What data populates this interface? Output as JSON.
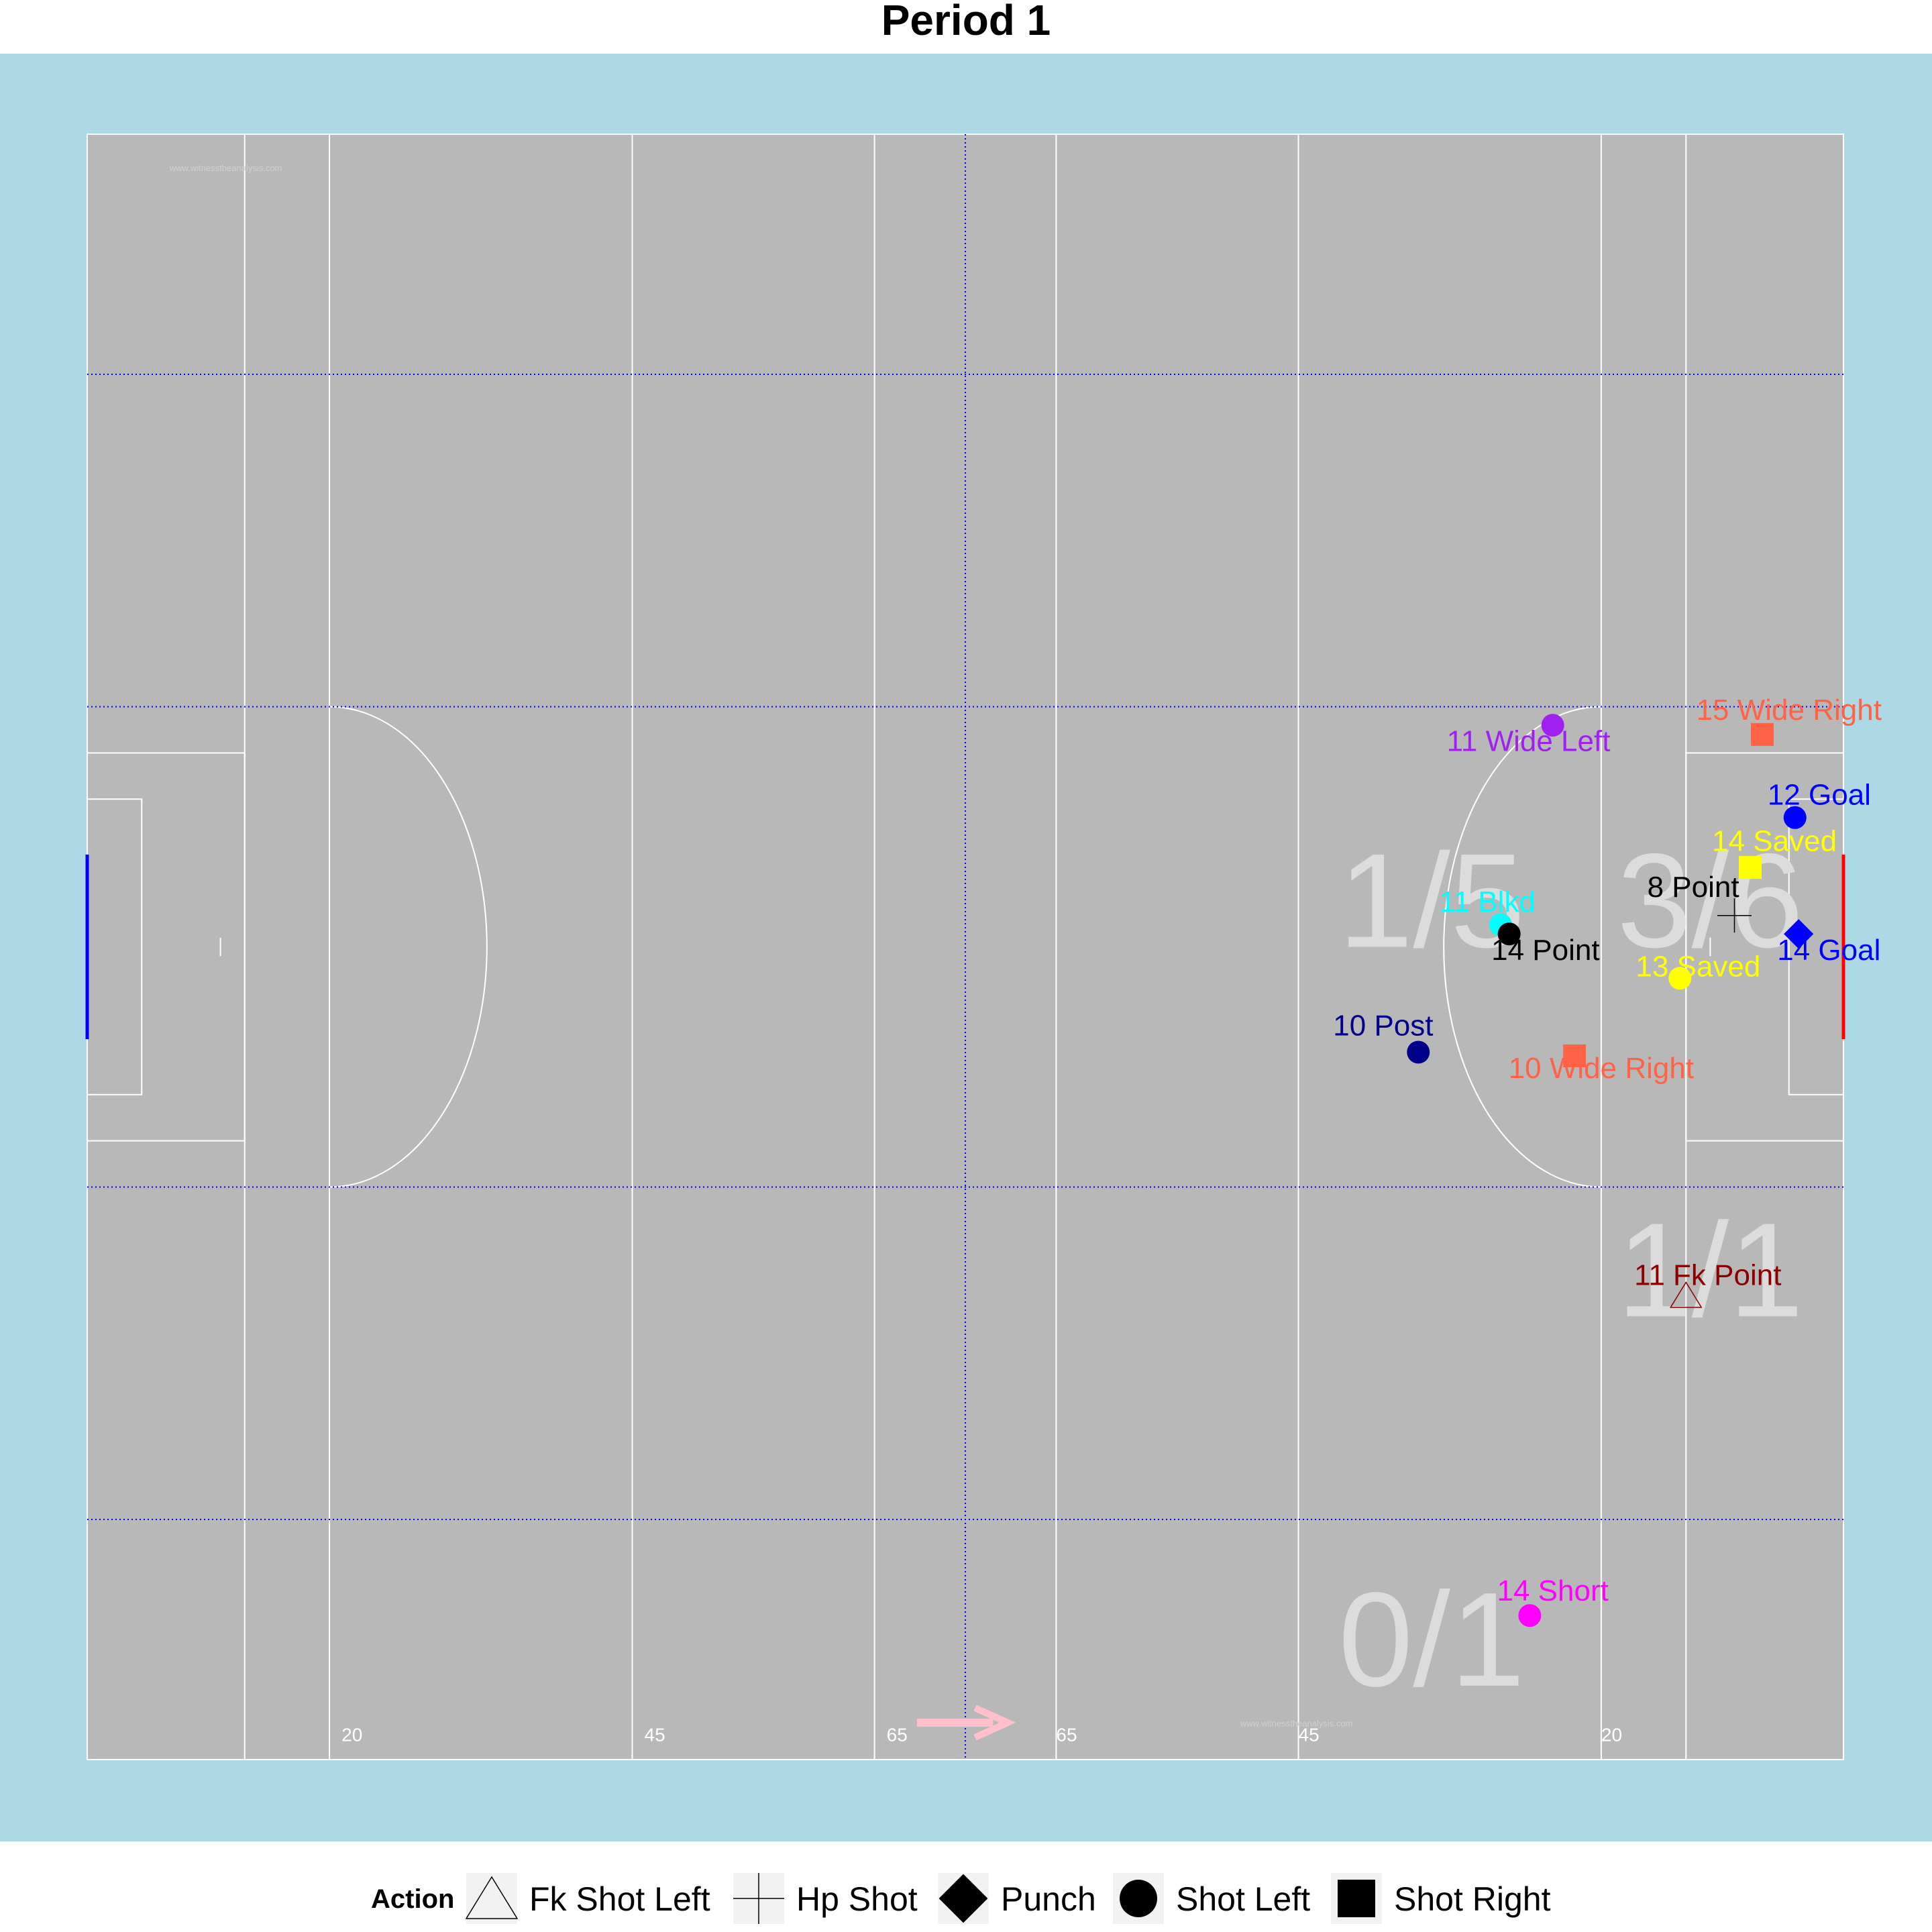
{
  "chart_data": {
    "type": "scatter",
    "title": "Period 1",
    "xlim": [
      0,
      145
    ],
    "ylim": [
      0,
      88
    ],
    "colors": {
      "outer": "#add8e6",
      "pitch": "#b8b8b8",
      "lines": "#ffffff",
      "dotted": "#0000ff",
      "left_goal": "#0000ff",
      "right_goal": "#ff0000",
      "arrow": "#ffc0cb",
      "stat": "#dcdcdc"
    },
    "distance_labels": [
      {
        "x": 21,
        "text": "20"
      },
      {
        "x": 46,
        "text": "45"
      },
      {
        "x": 66,
        "text": "65"
      },
      {
        "x": 80,
        "text": "65"
      },
      {
        "x": 100,
        "text": "45"
      },
      {
        "x": 125,
        "text": "20"
      }
    ],
    "watermark": "www.witnesstheanalysis.com",
    "zone_stats": [
      {
        "x": 111,
        "y": 44,
        "text": "1/5"
      },
      {
        "x": 134,
        "y": 44,
        "text": "3/6"
      },
      {
        "x": 134,
        "y": 24,
        "text": "1/1"
      },
      {
        "x": 111,
        "y": 4,
        "text": "0/1"
      }
    ],
    "points": [
      {
        "x": 121.0,
        "y": 56.0,
        "shape": "circle",
        "color": "#a020f0",
        "label": "11 Wide Left",
        "lx": 119.0,
        "ly": 54.6
      },
      {
        "x": 138.3,
        "y": 55.5,
        "shape": "square",
        "color": "#ff6347",
        "label": "15 Wide Right",
        "lx": 140.5,
        "ly": 56.3
      },
      {
        "x": 141.0,
        "y": 51.0,
        "shape": "circle",
        "color": "#0000ff",
        "label": "12 Goal",
        "lx": 143.0,
        "ly": 51.7
      },
      {
        "x": 137.3,
        "y": 48.3,
        "shape": "square",
        "color": "#ffff00",
        "label": "14 Saved",
        "lx": 139.3,
        "ly": 49.2
      },
      {
        "x": 136.0,
        "y": 45.7,
        "shape": "plus",
        "color": "#000000",
        "label": "8 Point",
        "lx": 132.6,
        "ly": 46.7
      },
      {
        "x": 116.7,
        "y": 45.2,
        "shape": "circle",
        "color": "#00ffff",
        "label": "11 Blkd",
        "lx": 115.6,
        "ly": 45.9
      },
      {
        "x": 117.4,
        "y": 44.7,
        "shape": "circle",
        "color": "#000000",
        "label": "14 Point",
        "lx": 120.4,
        "ly": 43.3
      },
      {
        "x": 141.3,
        "y": 44.7,
        "shape": "diamond",
        "color": "#0000ff",
        "label": "14 Goal",
        "lx": 143.8,
        "ly": 43.3
      },
      {
        "x": 131.5,
        "y": 42.3,
        "shape": "circle",
        "color": "#ffff00",
        "label": "13 Saved",
        "lx": 133.0,
        "ly": 42.4
      },
      {
        "x": 109.9,
        "y": 38.3,
        "shape": "circle",
        "color": "#00008b",
        "label": "10 Post",
        "lx": 107.0,
        "ly": 39.2
      },
      {
        "x": 122.8,
        "y": 38.1,
        "shape": "square",
        "color": "#ff6347",
        "label": "10 Wide Right",
        "lx": 125.0,
        "ly": 36.9
      },
      {
        "x": 132.0,
        "y": 25.1,
        "shape": "triangle",
        "color": "#8b0000",
        "label": "11 Fk Point",
        "lx": 133.8,
        "ly": 25.7
      },
      {
        "x": 119.1,
        "y": 7.8,
        "shape": "circle",
        "color": "#ff00ff",
        "label": "14 Short",
        "lx": 121.0,
        "ly": 8.6
      }
    ],
    "legend": {
      "title": "Action",
      "placement": "bottom",
      "entries": [
        {
          "shape": "triangle",
          "label": "Fk Shot Left"
        },
        {
          "shape": "plus",
          "label": "Hp Shot"
        },
        {
          "shape": "diamond",
          "label": "Punch"
        },
        {
          "shape": "circle",
          "label": "Shot Left"
        },
        {
          "shape": "square",
          "label": "Shot Right"
        }
      ]
    }
  }
}
